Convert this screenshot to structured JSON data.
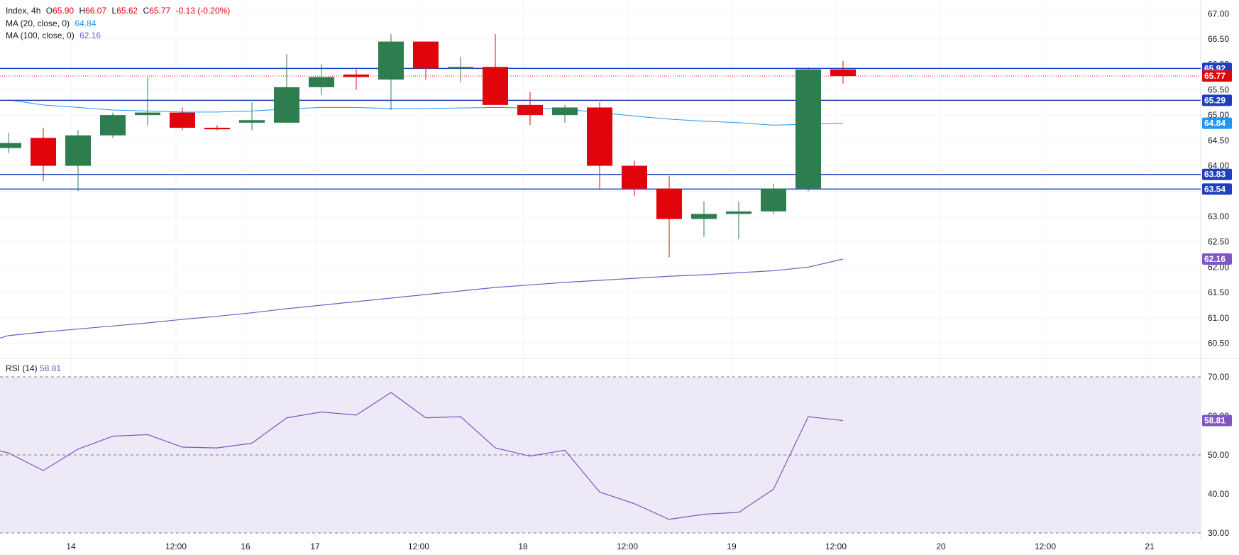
{
  "header": {
    "symbol": "Index, 4h",
    "o_label": "O",
    "o_value": "65.90",
    "h_label": "H",
    "h_value": "66.07",
    "l_label": "L",
    "l_value": "65.62",
    "c_label": "C",
    "c_value": "65.77",
    "change": "-0.13 (-0.20%)",
    "ma20_label": "MA (20, close, 0)",
    "ma20_value": "64.84",
    "ma100_label": "MA (100, close, 0)",
    "ma100_value": "62.16",
    "rsi_label": "RSI (14)",
    "rsi_value": "58.81"
  },
  "colors": {
    "up": "#2e7d4f",
    "down": "#e0040b",
    "ma20": "#2196f3",
    "ma100": "#7e57c2",
    "hline": "#1f3fc0",
    "rsi": "#7e57c2",
    "rsi_band": "#ede9f7"
  },
  "chart_data": [
    {
      "type": "candlestick",
      "title": "Index, 4h",
      "ylim": [
        60.2,
        67.2
      ],
      "y_ticks": [
        "60.50",
        "61.00",
        "61.50",
        "62.00",
        "62.50",
        "63.00",
        "63.50",
        "64.00",
        "64.50",
        "65.00",
        "65.50",
        "66.00",
        "66.50",
        "67.00"
      ],
      "x_ticks": [
        "14",
        "12:00",
        "16",
        "17",
        "12:00",
        "18",
        "12:00",
        "19",
        "12:00",
        "20",
        "12:00",
        "21"
      ],
      "candles": [
        {
          "o": 64.35,
          "h": 64.65,
          "l": 64.25,
          "c": 64.45
        },
        {
          "o": 64.55,
          "h": 64.75,
          "l": 63.7,
          "c": 64.0
        },
        {
          "o": 64.0,
          "h": 64.7,
          "l": 63.5,
          "c": 64.6
        },
        {
          "o": 64.6,
          "h": 65.05,
          "l": 64.55,
          "c": 65.0
        },
        {
          "o": 65.0,
          "h": 65.75,
          "l": 64.8,
          "c": 65.05
        },
        {
          "o": 65.05,
          "h": 65.15,
          "l": 64.7,
          "c": 64.75
        },
        {
          "o": 64.75,
          "h": 64.8,
          "l": 64.7,
          "c": 64.72
        },
        {
          "o": 64.85,
          "h": 65.25,
          "l": 64.7,
          "c": 64.9
        },
        {
          "o": 64.85,
          "h": 66.2,
          "l": 64.85,
          "c": 65.55
        },
        {
          "o": 65.55,
          "h": 66.0,
          "l": 65.4,
          "c": 65.75
        },
        {
          "o": 65.8,
          "h": 65.9,
          "l": 65.5,
          "c": 65.75
        },
        {
          "o": 65.7,
          "h": 66.6,
          "l": 65.1,
          "c": 66.45
        },
        {
          "o": 66.45,
          "h": 66.45,
          "l": 65.7,
          "c": 65.92
        },
        {
          "o": 65.92,
          "h": 66.15,
          "l": 65.65,
          "c": 65.95
        },
        {
          "o": 65.95,
          "h": 66.6,
          "l": 65.25,
          "c": 65.2
        },
        {
          "o": 65.2,
          "h": 65.45,
          "l": 64.8,
          "c": 65.0
        },
        {
          "o": 65.0,
          "h": 65.2,
          "l": 64.85,
          "c": 65.15
        },
        {
          "o": 65.15,
          "h": 65.25,
          "l": 63.55,
          "c": 64.0
        },
        {
          "o": 64.0,
          "h": 64.1,
          "l": 63.4,
          "c": 63.55
        },
        {
          "o": 63.55,
          "h": 63.8,
          "l": 62.2,
          "c": 62.95
        },
        {
          "o": 62.95,
          "h": 63.3,
          "l": 62.6,
          "c": 63.05
        },
        {
          "o": 63.05,
          "h": 63.3,
          "l": 62.55,
          "c": 63.1
        },
        {
          "o": 63.1,
          "h": 63.65,
          "l": 63.05,
          "c": 63.55
        },
        {
          "o": 63.55,
          "h": 65.95,
          "l": 63.5,
          "c": 65.9
        },
        {
          "o": 65.9,
          "h": 66.07,
          "l": 65.62,
          "c": 65.77
        }
      ],
      "ma20": [
        65.3,
        65.2,
        65.15,
        65.1,
        65.08,
        65.06,
        65.06,
        65.08,
        65.12,
        65.15,
        65.15,
        65.13,
        65.13,
        65.14,
        65.15,
        65.14,
        65.12,
        65.05,
        64.98,
        64.92,
        64.88,
        64.85,
        64.8,
        64.82,
        64.84
      ],
      "ma100": [
        60.65,
        60.72,
        60.78,
        60.84,
        60.9,
        60.97,
        61.03,
        61.1,
        61.18,
        61.25,
        61.32,
        61.39,
        61.46,
        61.53,
        61.6,
        61.65,
        61.7,
        61.74,
        61.78,
        61.82,
        61.85,
        61.89,
        61.93,
        62.0,
        62.16
      ],
      "horizontal_levels": [
        {
          "value": 65.92,
          "label": "65.92"
        },
        {
          "value": 65.29,
          "label": "65.29"
        },
        {
          "value": 63.83,
          "label": "63.83"
        },
        {
          "value": 63.54,
          "label": "63.54"
        }
      ],
      "last_price": {
        "value": 65.77,
        "label": "65.77"
      },
      "ma20_last": {
        "value": 64.84,
        "label": "64.84"
      },
      "ma100_last": {
        "value": 62.16,
        "label": "62.16"
      }
    },
    {
      "type": "line",
      "title": "RSI (14)",
      "ylim": [
        28,
        72
      ],
      "y_ticks": [
        "30.00",
        "40.00",
        "50.00",
        "60.00",
        "70.00"
      ],
      "band": [
        30,
        70
      ],
      "midline": 50,
      "values": [
        50.5,
        46.0,
        51.5,
        54.8,
        55.2,
        52.0,
        51.8,
        53.0,
        59.5,
        61.0,
        60.2,
        66.0,
        59.5,
        59.8,
        51.8,
        49.7,
        51.2,
        40.5,
        37.5,
        33.5,
        34.8,
        35.3,
        41.2,
        59.8,
        58.81
      ],
      "last": {
        "value": 58.81,
        "label": "58.81"
      }
    }
  ]
}
